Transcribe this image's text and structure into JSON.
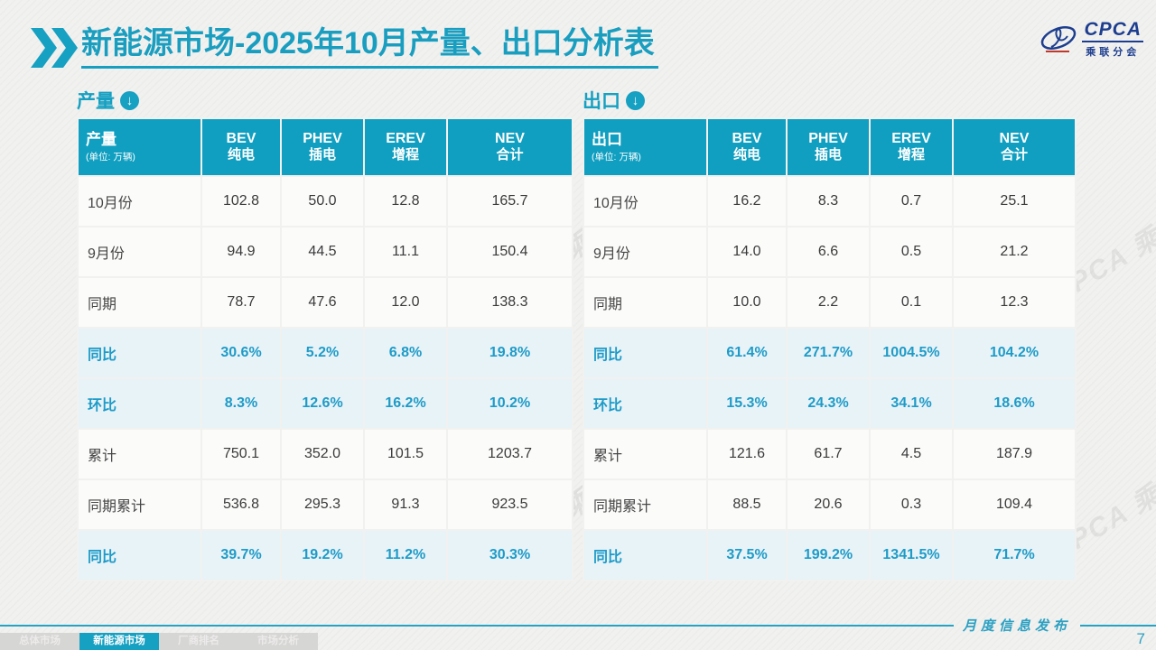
{
  "slide": {
    "title_bold": "新能源市场",
    "title_rest": "-2025年10月产量、出口分析表",
    "footer_caption": "月度信息发布",
    "page_number": "7",
    "watermark_text": "CPCA 乘联分会"
  },
  "logo": {
    "name": "CPCA",
    "subname": "乘联分会"
  },
  "colors": {
    "teal": "#16a0c1",
    "accent_text": "#1e9bc7",
    "highlight_bg": "#e8f3f8",
    "logo_blue": "#1d3e8f"
  },
  "tables": [
    {
      "section_label": "产量",
      "header": {
        "title": "产量",
        "unit": "(单位: 万辆)",
        "columns": [
          {
            "en": "BEV",
            "zh": "纯电"
          },
          {
            "en": "PHEV",
            "zh": "插电"
          },
          {
            "en": "EREV",
            "zh": "增程"
          },
          {
            "en": "NEV",
            "zh": "合计"
          }
        ]
      },
      "rows": [
        {
          "label": "10月份",
          "values": [
            "102.8",
            "50.0",
            "12.8",
            "165.7"
          ],
          "highlight": false
        },
        {
          "label": "9月份",
          "values": [
            "94.9",
            "44.5",
            "11.1",
            "150.4"
          ],
          "highlight": false
        },
        {
          "label": "同期",
          "values": [
            "78.7",
            "47.6",
            "12.0",
            "138.3"
          ],
          "highlight": false
        },
        {
          "label": "同比",
          "values": [
            "30.6%",
            "5.2%",
            "6.8%",
            "19.8%"
          ],
          "highlight": true
        },
        {
          "label": "环比",
          "values": [
            "8.3%",
            "12.6%",
            "16.2%",
            "10.2%"
          ],
          "highlight": true
        },
        {
          "label": "累计",
          "values": [
            "750.1",
            "352.0",
            "101.5",
            "1203.7"
          ],
          "highlight": false
        },
        {
          "label": "同期累计",
          "values": [
            "536.8",
            "295.3",
            "91.3",
            "923.5"
          ],
          "highlight": false
        },
        {
          "label": "同比",
          "values": [
            "39.7%",
            "19.2%",
            "11.2%",
            "30.3%"
          ],
          "highlight": true
        }
      ]
    },
    {
      "section_label": "出口",
      "header": {
        "title": "出口",
        "unit": "(单位: 万辆)",
        "columns": [
          {
            "en": "BEV",
            "zh": "纯电"
          },
          {
            "en": "PHEV",
            "zh": "插电"
          },
          {
            "en": "EREV",
            "zh": "增程"
          },
          {
            "en": "NEV",
            "zh": "合计"
          }
        ]
      },
      "rows": [
        {
          "label": "10月份",
          "values": [
            "16.2",
            "8.3",
            "0.7",
            "25.1"
          ],
          "highlight": false
        },
        {
          "label": "9月份",
          "values": [
            "14.0",
            "6.6",
            "0.5",
            "21.2"
          ],
          "highlight": false
        },
        {
          "label": "同期",
          "values": [
            "10.0",
            "2.2",
            "0.1",
            "12.3"
          ],
          "highlight": false
        },
        {
          "label": "同比",
          "values": [
            "61.4%",
            "271.7%",
            "1004.5%",
            "104.2%"
          ],
          "highlight": true
        },
        {
          "label": "环比",
          "values": [
            "15.3%",
            "24.3%",
            "34.1%",
            "18.6%"
          ],
          "highlight": true
        },
        {
          "label": "累计",
          "values": [
            "121.6",
            "61.7",
            "4.5",
            "187.9"
          ],
          "highlight": false
        },
        {
          "label": "同期累计",
          "values": [
            "88.5",
            "20.6",
            "0.3",
            "109.4"
          ],
          "highlight": false
        },
        {
          "label": "同比",
          "values": [
            "37.5%",
            "199.2%",
            "1341.5%",
            "71.7%"
          ],
          "highlight": true
        }
      ]
    }
  ],
  "footer_tabs": [
    {
      "label": "总体市场",
      "active": false
    },
    {
      "label": "新能源市场",
      "active": true
    },
    {
      "label": "厂商排名",
      "active": false
    },
    {
      "label": "市场分析",
      "active": false
    }
  ]
}
